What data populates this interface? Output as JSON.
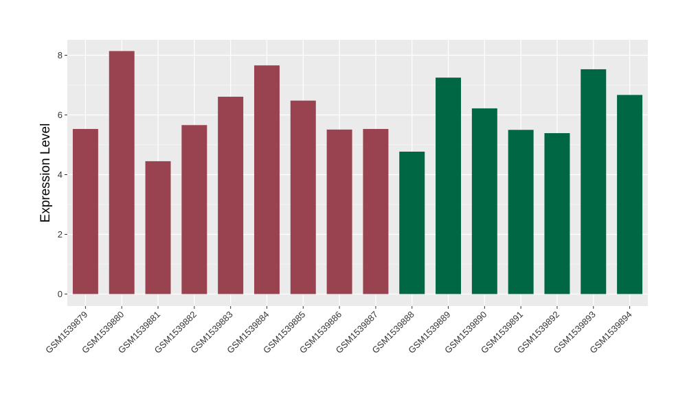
{
  "chart_data": {
    "type": "bar",
    "title": "",
    "xlabel": "",
    "ylabel": "Expression Level",
    "ylim": [
      0,
      8.6
    ],
    "yticks": [
      0,
      2,
      4,
      6,
      8
    ],
    "grid": true,
    "legend": "none",
    "categories": [
      "GSM1539879",
      "GSM1539880",
      "GSM1539881",
      "GSM1539882",
      "GSM1539883",
      "GSM1539884",
      "GSM1539885",
      "GSM1539886",
      "GSM1539887",
      "GSM1539888",
      "GSM1539889",
      "GSM1539890",
      "GSM1539891",
      "GSM1539892",
      "GSM1539893",
      "GSM1539894"
    ],
    "values": [
      5.53,
      8.14,
      4.45,
      5.66,
      6.61,
      7.66,
      6.48,
      5.51,
      5.53,
      4.77,
      7.25,
      6.22,
      5.5,
      5.39,
      7.53,
      6.67
    ],
    "colors": [
      "#9a4350",
      "#9a4350",
      "#9a4350",
      "#9a4350",
      "#9a4350",
      "#9a4350",
      "#9a4350",
      "#9a4350",
      "#9a4350",
      "#006745",
      "#006745",
      "#006745",
      "#006745",
      "#006745",
      "#006745",
      "#006745"
    ],
    "panel_background": "#ebebeb",
    "grid_color": "#ffffff"
  }
}
